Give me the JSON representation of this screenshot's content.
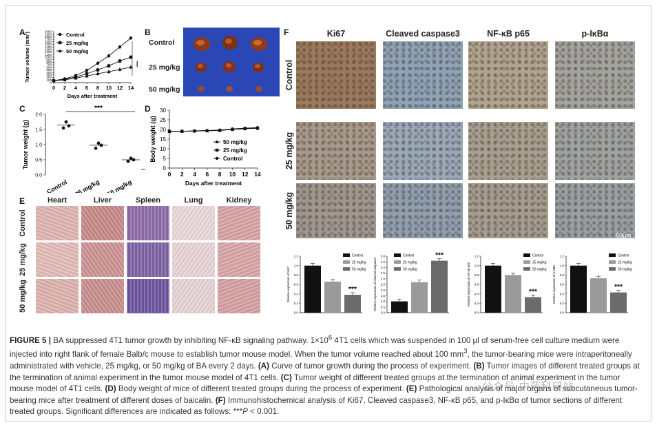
{
  "panels": {
    "A": {
      "label": "A",
      "ylabel": "Tumor volume (mm³)",
      "xlabel": "Days after treatment",
      "legend": [
        "Control",
        "25 mg/kg",
        "50 mg/kg"
      ],
      "sig": "***"
    },
    "B": {
      "label": "B",
      "rows": [
        "Control",
        "25 mg/kg",
        "50 mg/kg"
      ]
    },
    "C": {
      "label": "C",
      "ylabel": "Tumor weight (g)",
      "sig": "***"
    },
    "D": {
      "label": "D",
      "ylabel": "Body weight (g)",
      "xlabel": "Days after treatment",
      "legend": [
        "50 mg/kg",
        "25 mg/kg",
        "Control"
      ]
    },
    "E": {
      "label": "E",
      "columns": [
        "Heart",
        "Liver",
        "Spleen",
        "Lung",
        "Kidney"
      ],
      "rows": [
        "Control",
        "25 mg/kg",
        "50 mg/kg"
      ]
    },
    "F": {
      "label": "F",
      "columns": [
        "Ki67",
        "Cleaved caspase3",
        "NF-κB p65",
        "p-IκBα"
      ],
      "rows": [
        "Control",
        "25 mg/kg",
        "50 mg/kg"
      ],
      "scale_bar": "50μm",
      "bar_legend": [
        "Control",
        "25 mg/kg",
        "50 mg/kg"
      ],
      "bar_ylabels": [
        "Relative expression of Ki67",
        "Relative expression of cleaved caspase3",
        "Relative expression of NF-κB p65",
        "Relative expression of p-IκBα"
      ],
      "sig": "***"
    }
  },
  "chart_data": [
    {
      "type": "line",
      "panel": "A",
      "x": [
        0,
        2,
        4,
        6,
        8,
        10,
        12,
        14
      ],
      "xlim": [
        0,
        14
      ],
      "ylim": [
        0,
        2000
      ],
      "yticks": [
        0,
        100,
        200,
        300,
        400,
        500,
        600,
        700,
        800,
        900,
        1000,
        1100,
        1200,
        1300,
        1400,
        1500,
        1600,
        1700,
        1800,
        1900,
        2000
      ],
      "series": [
        {
          "name": "Control",
          "values": [
            80,
            150,
            280,
            480,
            760,
            1050,
            1400,
            1750
          ]
        },
        {
          "name": "25 mg/kg",
          "values": [
            80,
            130,
            220,
            350,
            500,
            660,
            850,
            1000
          ]
        },
        {
          "name": "50 mg/kg",
          "values": [
            80,
            110,
            180,
            260,
            350,
            430,
            520,
            610
          ]
        }
      ]
    },
    {
      "type": "scatter",
      "panel": "C",
      "categories": [
        "Control",
        "25 mg/kg",
        "50 mg/kg"
      ],
      "ylim": [
        0,
        2.0
      ],
      "yticks": [
        0.0,
        0.5,
        1.0,
        1.5,
        2.0
      ],
      "points": [
        [
          1.55,
          1.75,
          1.62
        ],
        [
          0.88,
          1.05,
          0.98
        ],
        [
          0.45,
          0.55,
          0.5
        ]
      ],
      "means": [
        1.65,
        0.98,
        0.5
      ]
    },
    {
      "type": "line",
      "panel": "D",
      "x": [
        0,
        2,
        4,
        6,
        8,
        10,
        12,
        14
      ],
      "xlim": [
        0,
        14
      ],
      "ylim": [
        0,
        30
      ],
      "yticks": [
        0,
        5,
        10,
        15,
        20,
        25,
        30
      ],
      "series": [
        {
          "name": "50 mg/kg",
          "values": [
            19,
            19,
            19.2,
            19.4,
            19.6,
            20.2,
            20.6,
            20.8
          ]
        },
        {
          "name": "25 mg/kg",
          "values": [
            19,
            19.1,
            19.2,
            19.3,
            19.5,
            20.0,
            20.4,
            20.6
          ]
        },
        {
          "name": "Control",
          "values": [
            19,
            19.1,
            19.3,
            19.5,
            19.7,
            20.3,
            20.7,
            21.0
          ]
        }
      ]
    },
    {
      "type": "bar",
      "panel": "F1",
      "categories": [
        "Control",
        "25 mg/kg",
        "50 mg/kg"
      ],
      "values": [
        1.0,
        0.66,
        0.38
      ],
      "ylim": [
        0,
        1.2
      ],
      "yticks": [
        0.0,
        0.2,
        0.4,
        0.6,
        0.8,
        1.0,
        1.2
      ]
    },
    {
      "type": "bar",
      "panel": "F2",
      "categories": [
        "Control",
        "25 mg/kg",
        "50 mg/kg"
      ],
      "values": [
        1.0,
        2.7,
        4.6
      ],
      "ylim": [
        0,
        5.0
      ],
      "yticks": [
        0.0,
        0.5,
        1.0,
        1.5,
        2.0,
        2.5,
        3.0,
        3.5,
        4.0,
        4.5,
        5.0
      ]
    },
    {
      "type": "bar",
      "panel": "F3",
      "categories": [
        "Control",
        "25 mg/kg",
        "50 mg/kg"
      ],
      "values": [
        1.0,
        0.8,
        0.33
      ],
      "ylim": [
        0,
        1.2
      ],
      "yticks": [
        0.0,
        0.2,
        0.4,
        0.6,
        0.8,
        1.0,
        1.2
      ]
    },
    {
      "type": "bar",
      "panel": "F4",
      "categories": [
        "Control",
        "25 mg/kg",
        "50 mg/kg"
      ],
      "values": [
        1.0,
        0.73,
        0.43
      ],
      "ylim": [
        0,
        1.2
      ],
      "yticks": [
        0.0,
        0.2,
        0.4,
        0.6,
        0.8,
        1.0,
        1.2
      ]
    }
  ],
  "colors": {
    "black": "#111111",
    "gray": "#9a9a9a",
    "darkgray": "#6b6b6b"
  },
  "caption": {
    "fig": "FIGURE 5 |",
    "t1": " BA suppressed 4T1 tumor growth by inhibiting NF-κB signaling pathway. 1×10",
    "sup6": "6",
    "t2": " 4T1 cells which was suspended in 100 μl of serum-free cell culture medium were injected into right flank of female Balb/c mouse to establish tumor mouse model. When the tumor volume reached about 100 mm",
    "sup3": "3",
    "t3": ", the tumor-bearing mice were intraperitoneally administrated with vehicle, 25 mg/kg, or 50 mg/kg of BA every 2 days. ",
    "la": "(A)",
    "ta": " Curve of tumor growth during the process of experiment. ",
    "lb": "(B)",
    "tb": " Tumor images of different treated groups at the termination of animal experiment in the tumor mouse model of 4T1 cells. ",
    "lc": "(C)",
    "tc": " Tumor weight of different treated groups at the termination of animal experiment in the tumor mouse model of 4T1 cells. ",
    "ld": "(D)",
    "td": " Body weight of mice of different treated groups during the process of experiment. ",
    "le": "(E)",
    "te": " Pathological analysis of major organs of subcutaneous tumor-bearing mice after treatment of different doses of baicalin. ",
    "lf": "(F)",
    "tf": " Immunohistochemical analysis of Ki67, Cleaved caspase3, NF-κB p65, and p-IκBα of tumor sections of different treated groups. Significant differences are indicated as follows: ***",
    "p": "P",
    "tend": " < 0.001."
  },
  "watermark": "公众号·中药科研站"
}
